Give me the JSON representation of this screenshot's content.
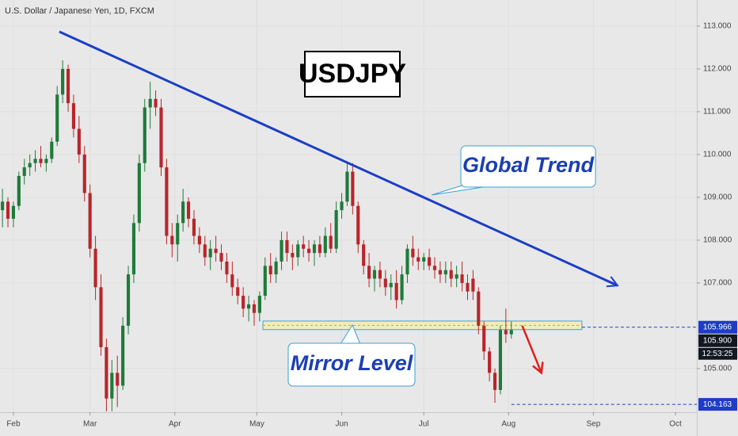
{
  "chart_data": {
    "type": "candlestick",
    "title": "U.S. Dollar / Japanese Yen, 1D, FXCM",
    "symbol_label": "USDJPY",
    "annotations": [
      "Global Trend",
      "Mirror Level"
    ],
    "up_color": "#1f7a3a",
    "down_color": "#b8262b",
    "x": [
      -4,
      -2,
      0,
      2,
      4,
      6,
      8,
      10,
      12,
      14,
      16,
      18,
      20,
      22,
      24,
      26,
      28,
      30,
      32,
      34,
      36,
      38,
      40,
      42,
      44,
      46,
      48,
      50,
      52,
      54,
      56,
      58,
      60,
      62,
      64,
      66,
      68,
      70,
      72,
      74,
      76,
      78,
      80,
      82,
      84,
      86,
      88,
      90,
      92,
      94,
      96,
      98,
      100,
      102,
      104,
      106,
      108,
      110,
      112,
      114,
      116,
      118,
      120,
      122,
      124,
      126,
      128,
      130,
      132,
      134,
      136,
      138,
      140,
      142,
      144,
      146,
      148,
      150,
      152,
      154,
      156,
      158,
      160,
      162,
      164,
      166,
      168,
      170,
      172,
      174,
      176,
      178,
      180,
      182
    ],
    "open": [
      108.7,
      108.9,
      108.5,
      108.8,
      109.5,
      109.7,
      109.8,
      109.9,
      109.8,
      109.9,
      110.3,
      111.4,
      112.0,
      111.2,
      110.6,
      110.0,
      109.1,
      107.8,
      106.9,
      105.5,
      104.3,
      104.9,
      104.6,
      106.0,
      107.2,
      108.4,
      109.8,
      111.1,
      111.3,
      111.1,
      109.7,
      108.1,
      107.9,
      108.4,
      108.9,
      108.5,
      108.1,
      107.9,
      107.6,
      107.8,
      107.7,
      107.5,
      107.2,
      106.9,
      106.7,
      106.4,
      106.5,
      106.3,
      106.7,
      107.4,
      107.2,
      107.5,
      108.0,
      107.7,
      107.6,
      107.9,
      107.8,
      107.7,
      107.9,
      107.7,
      108.1,
      107.8,
      108.7,
      108.9,
      109.6,
      108.8,
      107.9,
      107.4,
      107.1,
      107.3,
      107.1,
      106.9,
      107.0,
      106.6,
      107.2,
      107.8,
      107.6,
      107.5,
      107.6,
      107.4,
      107.3,
      107.2,
      107.3,
      107.1,
      107.2,
      107.0,
      107.1,
      106.8,
      106.0,
      105.4,
      104.9,
      104.5,
      105.9,
      105.8
    ],
    "high": [
      109.2,
      109.0,
      108.9,
      109.6,
      109.9,
      110.0,
      110.1,
      110.2,
      110.0,
      110.4,
      111.6,
      112.2,
      112.1,
      111.4,
      110.9,
      110.2,
      109.3,
      108.1,
      107.2,
      105.7,
      105.2,
      105.3,
      106.2,
      107.4,
      108.6,
      110.0,
      111.3,
      111.7,
      111.5,
      111.3,
      109.9,
      108.4,
      108.6,
      109.2,
      109.0,
      108.7,
      108.3,
      108.1,
      108.0,
      108.1,
      107.9,
      107.7,
      107.5,
      107.1,
      106.9,
      106.7,
      106.6,
      106.8,
      107.6,
      107.7,
      107.6,
      108.2,
      108.2,
      107.9,
      108.0,
      108.1,
      108.0,
      108.0,
      108.1,
      108.3,
      108.4,
      108.9,
      109.1,
      109.8,
      109.8,
      108.9,
      108.0,
      107.7,
      107.4,
      107.5,
      107.3,
      107.2,
      107.3,
      107.4,
      107.9,
      108.1,
      107.8,
      107.7,
      107.8,
      107.6,
      107.5,
      107.5,
      107.5,
      107.4,
      107.5,
      107.2,
      107.3,
      106.9,
      106.1,
      105.5,
      105.0,
      106.0,
      106.4,
      106.1
    ],
    "low": [
      108.3,
      108.3,
      108.3,
      108.7,
      109.3,
      109.5,
      109.6,
      109.7,
      109.6,
      109.8,
      110.2,
      111.2,
      111.0,
      110.4,
      109.8,
      108.9,
      107.6,
      106.6,
      105.3,
      104.0,
      104.0,
      104.1,
      104.5,
      105.8,
      107.0,
      108.2,
      109.6,
      110.6,
      110.9,
      109.5,
      107.9,
      107.6,
      107.5,
      108.2,
      108.3,
      107.9,
      107.7,
      107.4,
      107.3,
      107.5,
      107.3,
      107.0,
      106.7,
      106.5,
      106.2,
      106.1,
      106.0,
      106.1,
      106.6,
      107.0,
      107.0,
      107.3,
      107.5,
      107.3,
      107.4,
      107.6,
      107.5,
      107.4,
      107.6,
      107.6,
      107.7,
      107.7,
      108.5,
      108.8,
      108.6,
      107.7,
      107.2,
      106.9,
      106.8,
      106.9,
      106.7,
      106.6,
      106.4,
      106.5,
      107.0,
      107.4,
      107.3,
      107.3,
      107.3,
      107.1,
      107.0,
      107.0,
      106.9,
      106.9,
      106.8,
      106.6,
      106.6,
      105.8,
      105.2,
      104.7,
      104.2,
      104.4,
      105.6,
      105.7
    ],
    "close": [
      108.9,
      108.5,
      108.8,
      109.5,
      109.7,
      109.8,
      109.9,
      109.8,
      109.9,
      110.3,
      111.4,
      112.0,
      111.2,
      110.6,
      110.0,
      109.1,
      107.8,
      106.9,
      105.5,
      104.3,
      104.9,
      104.6,
      106.0,
      107.2,
      108.4,
      109.8,
      111.1,
      111.3,
      111.1,
      109.7,
      108.1,
      107.9,
      108.4,
      108.9,
      108.5,
      108.1,
      107.9,
      107.6,
      107.8,
      107.7,
      107.5,
      107.2,
      106.9,
      106.7,
      106.4,
      106.5,
      106.3,
      106.7,
      107.4,
      107.2,
      107.5,
      108.0,
      107.7,
      107.6,
      107.9,
      107.8,
      107.7,
      107.9,
      107.7,
      108.1,
      107.8,
      108.7,
      108.9,
      109.6,
      108.8,
      107.9,
      107.4,
      107.1,
      107.3,
      107.1,
      106.9,
      107.0,
      106.6,
      107.2,
      107.8,
      107.6,
      107.5,
      107.6,
      107.4,
      107.3,
      107.2,
      107.3,
      107.1,
      107.2,
      107.0,
      106.8,
      106.8,
      106.0,
      105.4,
      104.9,
      104.5,
      105.9,
      105.8,
      105.9
    ],
    "xlim": [
      -4.9,
      249.8
    ],
    "xticks": [
      {
        "value": 0,
        "label": "Feb"
      },
      {
        "value": 28,
        "label": "Mar"
      },
      {
        "value": 59,
        "label": "Apr"
      },
      {
        "value": 89,
        "label": "May"
      },
      {
        "value": 120,
        "label": "Jun"
      },
      {
        "value": 150,
        "label": "Jul"
      },
      {
        "value": 181,
        "label": "Aug"
      },
      {
        "value": 212,
        "label": "Sep"
      },
      {
        "value": 242,
        "label": "Oct"
      }
    ],
    "ylim": [
      103.98,
      113.61
    ],
    "yticks": [
      {
        "value": 113,
        "label": "113.000"
      },
      {
        "value": 112,
        "label": "112.000"
      },
      {
        "value": 111,
        "label": "111.000"
      },
      {
        "value": 110,
        "label": "110.000"
      },
      {
        "value": 109,
        "label": "109.000"
      },
      {
        "value": 108,
        "label": "108.000"
      },
      {
        "value": 107,
        "label": "107.000"
      },
      {
        "value": 105,
        "label": "105.000"
      }
    ],
    "trend_line": {
      "x": [
        16.8,
        220.8
      ],
      "y": [
        112.87,
        106.94
      ],
      "color": "#1b3fc4"
    },
    "zone": {
      "x": [
        91.2,
        207.8
      ],
      "y": [
        105.91,
        106.11
      ]
    },
    "arrow": {
      "x": [
        186,
        193
      ],
      "y": [
        106.0,
        104.9
      ],
      "color": "#e01e1e"
    },
    "price_tags": [
      {
        "value": 105.966,
        "label": "105.966",
        "color": "#1e3cc8",
        "line_from": 207.8
      },
      {
        "value": 105.9,
        "label": "105.900",
        "color": "#131722"
      },
      {
        "value": 104.163,
        "label": "104.163",
        "color": "#1e3cc8",
        "line_from": 182
      }
    ],
    "countdown": "12:53:25"
  }
}
